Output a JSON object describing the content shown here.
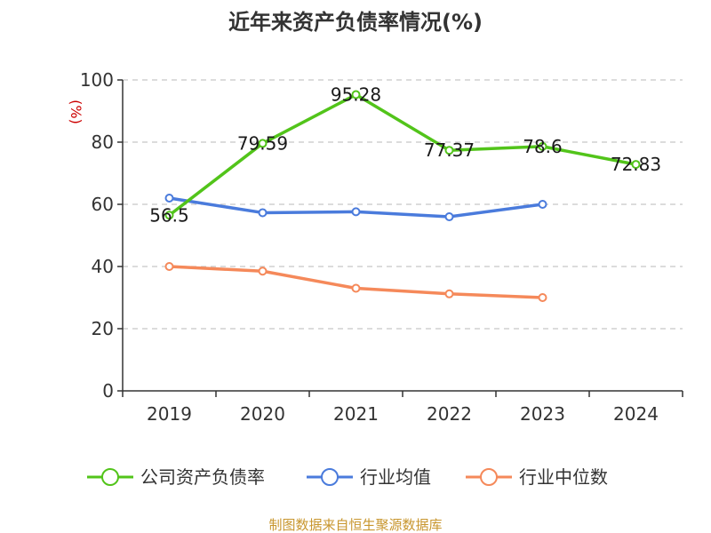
{
  "chart_data": {
    "type": "line",
    "title": "近年来资产负债率情况(%)",
    "ylabel": "(%)",
    "xlabel": "",
    "categories": [
      "2019",
      "2020",
      "2021",
      "2022",
      "2023",
      "2024"
    ],
    "ylim": [
      0,
      100
    ],
    "yticks": [
      0,
      20,
      40,
      60,
      80,
      100
    ],
    "grid": true,
    "legend_position": "bottom",
    "series": [
      {
        "name": "公司资产负债率",
        "color": "#52c41a",
        "values": [
          56.5,
          79.59,
          95.28,
          77.37,
          78.6,
          72.83
        ],
        "labels": [
          "56.5",
          "79.59",
          "95.28",
          "77.37",
          "78.6",
          "72.83"
        ]
      },
      {
        "name": "行业均值",
        "color": "#4a7bdc",
        "values": [
          62.0,
          57.3,
          57.6,
          56.0,
          60.0,
          null
        ],
        "labels": null
      },
      {
        "name": "行业中位数",
        "color": "#f5895a",
        "values": [
          40.0,
          38.5,
          33.0,
          31.2,
          30.0,
          null
        ],
        "labels": null
      }
    ]
  },
  "source_text": "制图数据来自恒生聚源数据库",
  "source_color": "#c8962e"
}
